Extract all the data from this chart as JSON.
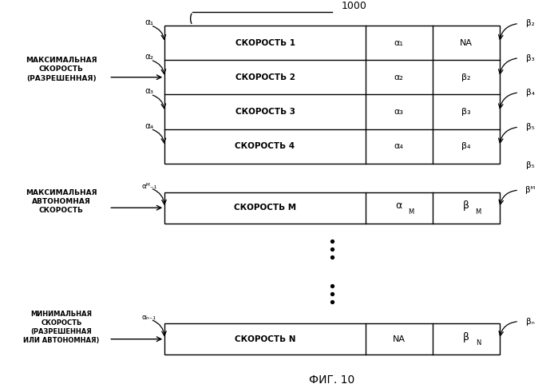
{
  "title": "1000",
  "caption": "ФИГ. 10",
  "bg_color": "#ffffff",
  "line_color": "#000000",
  "rows_top": [
    {
      "label": "СКОРОСТЬ 1",
      "col2": "α₁",
      "col3": "NA"
    },
    {
      "label": "СКОРОСТЬ 2",
      "col2": "α₂",
      "col3": "β₂"
    },
    {
      "label": "СКОРОСТЬ 3",
      "col2": "α₃",
      "col3": "β₃"
    },
    {
      "label": "СКОРОСТЬ 4",
      "col2": "α₄",
      "col3": "β₄"
    }
  ],
  "row_m": {
    "label": "СКОРОСТЬ M",
    "col2": "αM",
    "col3": "βM"
  },
  "row_n": {
    "label": "СКОРОСТЬ N",
    "col2": "NA",
    "col3": "βN"
  },
  "label_max_speed": "МАКСИМАЛЬНАЯ\nСКОРОСТЬ\n(РАЗРЕШЕННАЯ)",
  "label_max_auto": "МАКСИМАЛЬНАЯ\nАВТОНОМНАЯ\nСКОРОСТЬ",
  "label_min_speed": "МИНИМАЛЬНАЯ\nСКОРОСТЬ\n(РАЗРЕШЕННАЯ\nИЛИ АВТОНОМНАЯ)"
}
